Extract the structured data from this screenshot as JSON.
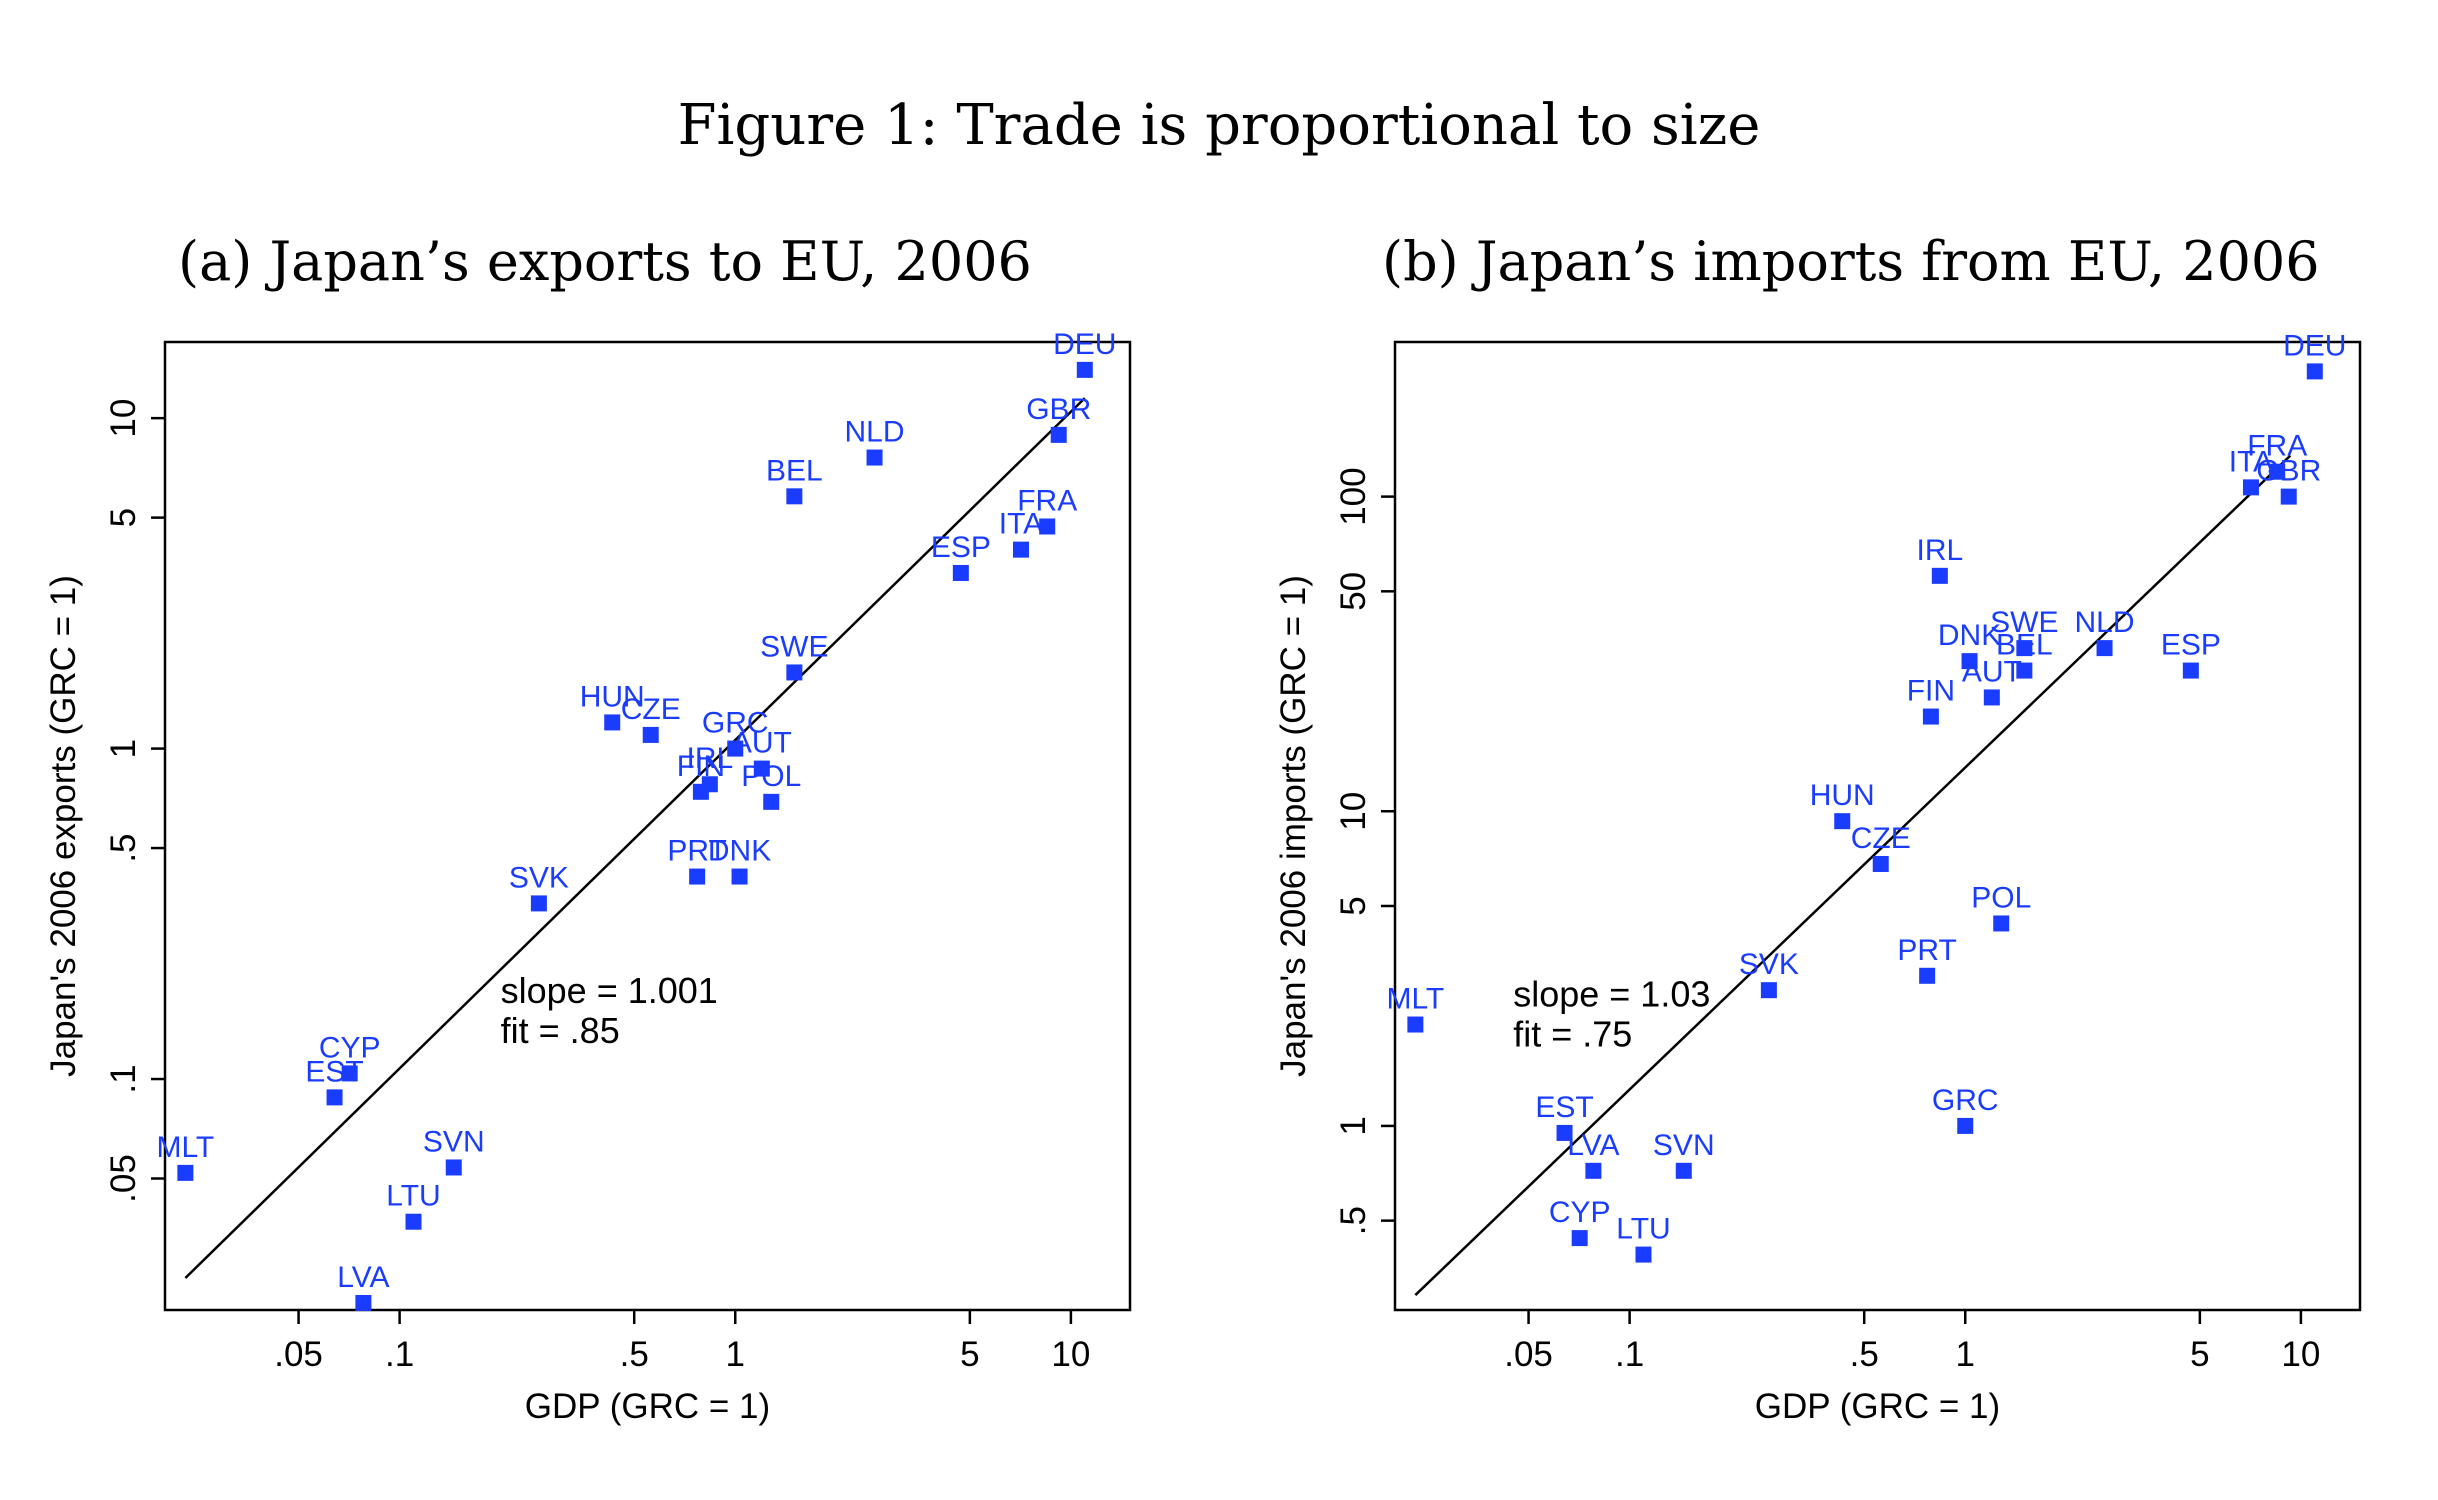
{
  "figure": {
    "title": "Figure 1: Trade is proportional to size"
  },
  "colors": {
    "marker": "#1a3cff",
    "label": "#1a3cff",
    "line": "#000000"
  },
  "chart_data": [
    {
      "type": "scatter",
      "title": "(a) Japan’s exports to EU, 2006",
      "xlabel": "GDP (GRC = 1)",
      "ylabel": "Japan's 2006 exports (GRC = 1)",
      "xscale": "log",
      "yscale": "log",
      "xlim": [
        0.02,
        15
      ],
      "ylim": [
        0.02,
        17
      ],
      "xticks": [
        0.05,
        0.1,
        0.5,
        1,
        5,
        10
      ],
      "xtick_labels": [
        ".05",
        ".1",
        ".5",
        "1",
        "5",
        "10"
      ],
      "yticks": [
        0.05,
        0.1,
        0.5,
        1,
        5,
        10
      ],
      "ytick_labels": [
        ".05",
        ".1",
        ".5",
        "1",
        "5",
        "10"
      ],
      "grid": false,
      "annotations": [
        "slope = 1.001",
        "fit = .85"
      ],
      "annotation_at": [
        0.2,
        0.17
      ],
      "fit": {
        "slope": 1.001,
        "x": [
          0.023,
          11
        ],
        "y": [
          0.025,
          11.5
        ]
      },
      "points": [
        {
          "label": "DEU",
          "x": 11,
          "y": 14
        },
        {
          "label": "GBR",
          "x": 9.2,
          "y": 8.9
        },
        {
          "label": "NLD",
          "x": 2.6,
          "y": 7.6
        },
        {
          "label": "BEL",
          "x": 1.5,
          "y": 5.8
        },
        {
          "label": "FRA",
          "x": 8.5,
          "y": 4.7
        },
        {
          "label": "ITA",
          "x": 7.1,
          "y": 4.0
        },
        {
          "label": "ESP",
          "x": 4.7,
          "y": 3.4
        },
        {
          "label": "SWE",
          "x": 1.5,
          "y": 1.7
        },
        {
          "label": "HUN",
          "x": 0.43,
          "y": 1.2
        },
        {
          "label": "CZE",
          "x": 0.56,
          "y": 1.1
        },
        {
          "label": "GRC",
          "x": 1.0,
          "y": 1.0
        },
        {
          "label": "AUT",
          "x": 1.2,
          "y": 0.87
        },
        {
          "label": "IRL",
          "x": 0.84,
          "y": 0.78
        },
        {
          "label": "FIN",
          "x": 0.79,
          "y": 0.74
        },
        {
          "label": "POL",
          "x": 1.28,
          "y": 0.69
        },
        {
          "label": "PRT",
          "x": 0.77,
          "y": 0.41
        },
        {
          "label": "DNK",
          "x": 1.03,
          "y": 0.41
        },
        {
          "label": "SVK",
          "x": 0.26,
          "y": 0.34
        },
        {
          "label": "CYP",
          "x": 0.071,
          "y": 0.104
        },
        {
          "label": "EST",
          "x": 0.064,
          "y": 0.088
        },
        {
          "label": "MLT",
          "x": 0.023,
          "y": 0.052
        },
        {
          "label": "SVN",
          "x": 0.145,
          "y": 0.054
        },
        {
          "label": "LTU",
          "x": 0.11,
          "y": 0.037
        },
        {
          "label": "LVA",
          "x": 0.078,
          "y": 0.021
        }
      ]
    },
    {
      "type": "scatter",
      "title": "(b) Japan’s imports from EU, 2006",
      "xlabel": "GDP (GRC = 1)",
      "ylabel": "Japan's 2006 imports (GRC = 1)",
      "xscale": "log",
      "yscale": "log",
      "xlim": [
        0.02,
        15
      ],
      "ylim": [
        0.26,
        310
      ],
      "xticks": [
        0.05,
        0.1,
        0.5,
        1,
        5,
        10
      ],
      "xtick_labels": [
        ".05",
        ".1",
        ".5",
        "1",
        "5",
        "10"
      ],
      "yticks": [
        0.5,
        1,
        5,
        10,
        50,
        100
      ],
      "ytick_labels": [
        ".5",
        "1",
        "5",
        "10",
        "50",
        "100"
      ],
      "grid": false,
      "annotations": [
        "slope = 1.03",
        "fit = .75"
      ],
      "annotation_at": [
        0.045,
        2.4
      ],
      "fit": {
        "slope": 1.03,
        "x": [
          0.023,
          9.3
        ],
        "y": [
          0.29,
          135
        ]
      },
      "points": [
        {
          "label": "DEU",
          "x": 11,
          "y": 250
        },
        {
          "label": "FRA",
          "x": 8.5,
          "y": 120
        },
        {
          "label": "ITA",
          "x": 7.1,
          "y": 107
        },
        {
          "label": "GBR",
          "x": 9.2,
          "y": 100
        },
        {
          "label": "IRL",
          "x": 0.84,
          "y": 56
        },
        {
          "label": "SWE",
          "x": 1.5,
          "y": 33
        },
        {
          "label": "NLD",
          "x": 2.6,
          "y": 33
        },
        {
          "label": "DNK",
          "x": 1.03,
          "y": 30
        },
        {
          "label": "BEL",
          "x": 1.5,
          "y": 28
        },
        {
          "label": "ESP",
          "x": 4.7,
          "y": 28
        },
        {
          "label": "AUT",
          "x": 1.2,
          "y": 23
        },
        {
          "label": "FIN",
          "x": 0.79,
          "y": 20
        },
        {
          "label": "HUN",
          "x": 0.43,
          "y": 9.3
        },
        {
          "label": "CZE",
          "x": 0.56,
          "y": 6.8
        },
        {
          "label": "POL",
          "x": 1.28,
          "y": 4.4
        },
        {
          "label": "PRT",
          "x": 0.77,
          "y": 3.0
        },
        {
          "label": "SVK",
          "x": 0.26,
          "y": 2.7
        },
        {
          "label": "MLT",
          "x": 0.023,
          "y": 2.1
        },
        {
          "label": "GRC",
          "x": 1.0,
          "y": 1.0
        },
        {
          "label": "EST",
          "x": 0.064,
          "y": 0.95
        },
        {
          "label": "LVA",
          "x": 0.078,
          "y": 0.72
        },
        {
          "label": "SVN",
          "x": 0.145,
          "y": 0.72
        },
        {
          "label": "CYP",
          "x": 0.071,
          "y": 0.44
        },
        {
          "label": "LTU",
          "x": 0.11,
          "y": 0.39
        }
      ]
    }
  ]
}
